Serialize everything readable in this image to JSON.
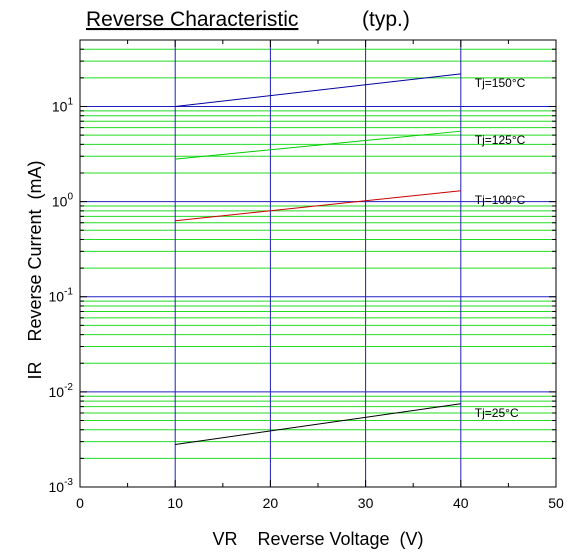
{
  "chart_data": {
    "type": "line",
    "title": "Reverse Characteristic",
    "subtitle": "(typ.)",
    "xlabel": "VR    Reverse Voltage  (V)",
    "ylabel": "IR    Reverse Current  (mA)",
    "x_scale": "linear",
    "y_scale": "log",
    "xlim": [
      0,
      50
    ],
    "ylim": [
      0.001,
      50
    ],
    "x_ticks": [
      "0",
      "10",
      "20",
      "30",
      "40",
      "50"
    ],
    "y_ticks": [
      {
        "base": "10",
        "exp": "-3",
        "value": 0.001
      },
      {
        "base": "10",
        "exp": "-2",
        "value": 0.01
      },
      {
        "base": "10",
        "exp": "-1",
        "value": 0.1
      },
      {
        "base": "10",
        "exp": "0",
        "value": 1
      },
      {
        "base": "10",
        "exp": "1",
        "value": 10
      }
    ],
    "grid": true,
    "colors": {
      "major_grid": "#2020c0",
      "minor_grid": "#22dd22",
      "axis": "#000000"
    },
    "series": [
      {
        "name": "Tj=150°C",
        "color": "#0000a0",
        "x": [
          10,
          40
        ],
        "y": [
          10.0,
          22.0
        ]
      },
      {
        "name": "Tj=125°C",
        "color": "#00cc00",
        "x": [
          10,
          40
        ],
        "y": [
          2.8,
          5.5
        ]
      },
      {
        "name": "Tj=100°C",
        "color": "#cc0000",
        "x": [
          10,
          40
        ],
        "y": [
          0.63,
          1.3
        ]
      },
      {
        "name": "Tj=25°C",
        "color": "#000000",
        "x": [
          10,
          40
        ],
        "y": [
          0.0028,
          0.0075
        ]
      }
    ]
  }
}
